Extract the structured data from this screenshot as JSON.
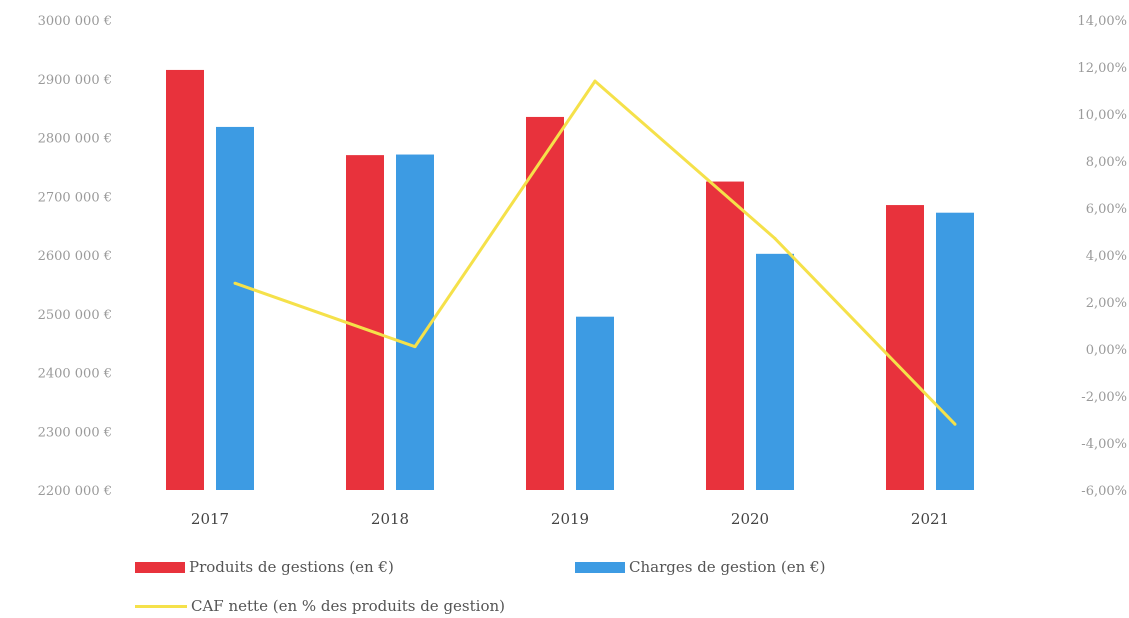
{
  "colors": {
    "produits": "#e8323c",
    "charges": "#3d9be3",
    "caf": "#f5e14a",
    "grid": "#ffffff"
  },
  "chart_data": {
    "type": "bar",
    "categories": [
      "2017",
      "2018",
      "2019",
      "2020",
      "2021"
    ],
    "series": [
      {
        "name": "Produits de gestions (en €)",
        "type": "bar",
        "axis": "left",
        "values": [
          2915000,
          2770000,
          2835000,
          2725000,
          2685000
        ]
      },
      {
        "name": "Charges de gestion (en €)",
        "type": "bar",
        "axis": "left",
        "values": [
          2818000,
          2771000,
          2495000,
          2602000,
          2672000
        ]
      },
      {
        "name": "CAF nette (en % des produits de gestion)",
        "type": "line",
        "axis": "right",
        "values": [
          2.8,
          0.1,
          11.4,
          4.7,
          -3.2
        ]
      }
    ],
    "left_axis": {
      "ylim": [
        2200000,
        3000000
      ],
      "tick_values": [
        2200000,
        2300000,
        2400000,
        2500000,
        2600000,
        2700000,
        2800000,
        2900000,
        3000000
      ],
      "tick_labels": [
        "2200 000 €",
        "2300 000 €",
        "2400 000 €",
        "2500 000 €",
        "2600 000 €",
        "2700 000 €",
        "2800 000 €",
        "2900 000 €",
        "3000 000 €"
      ]
    },
    "right_axis": {
      "ylim": [
        -6,
        14
      ],
      "tick_values": [
        -6,
        -4,
        -2,
        0,
        2,
        4,
        6,
        8,
        10,
        12,
        14
      ],
      "tick_labels": [
        "-6,00%",
        "-4,00%",
        "-2,00%",
        "0,00%",
        "2,00%",
        "4,00%",
        "6,00%",
        "8,00%",
        "10,00%",
        "12,00%",
        "14,00%"
      ]
    },
    "legend_position": "bottom-left",
    "grid": false
  }
}
